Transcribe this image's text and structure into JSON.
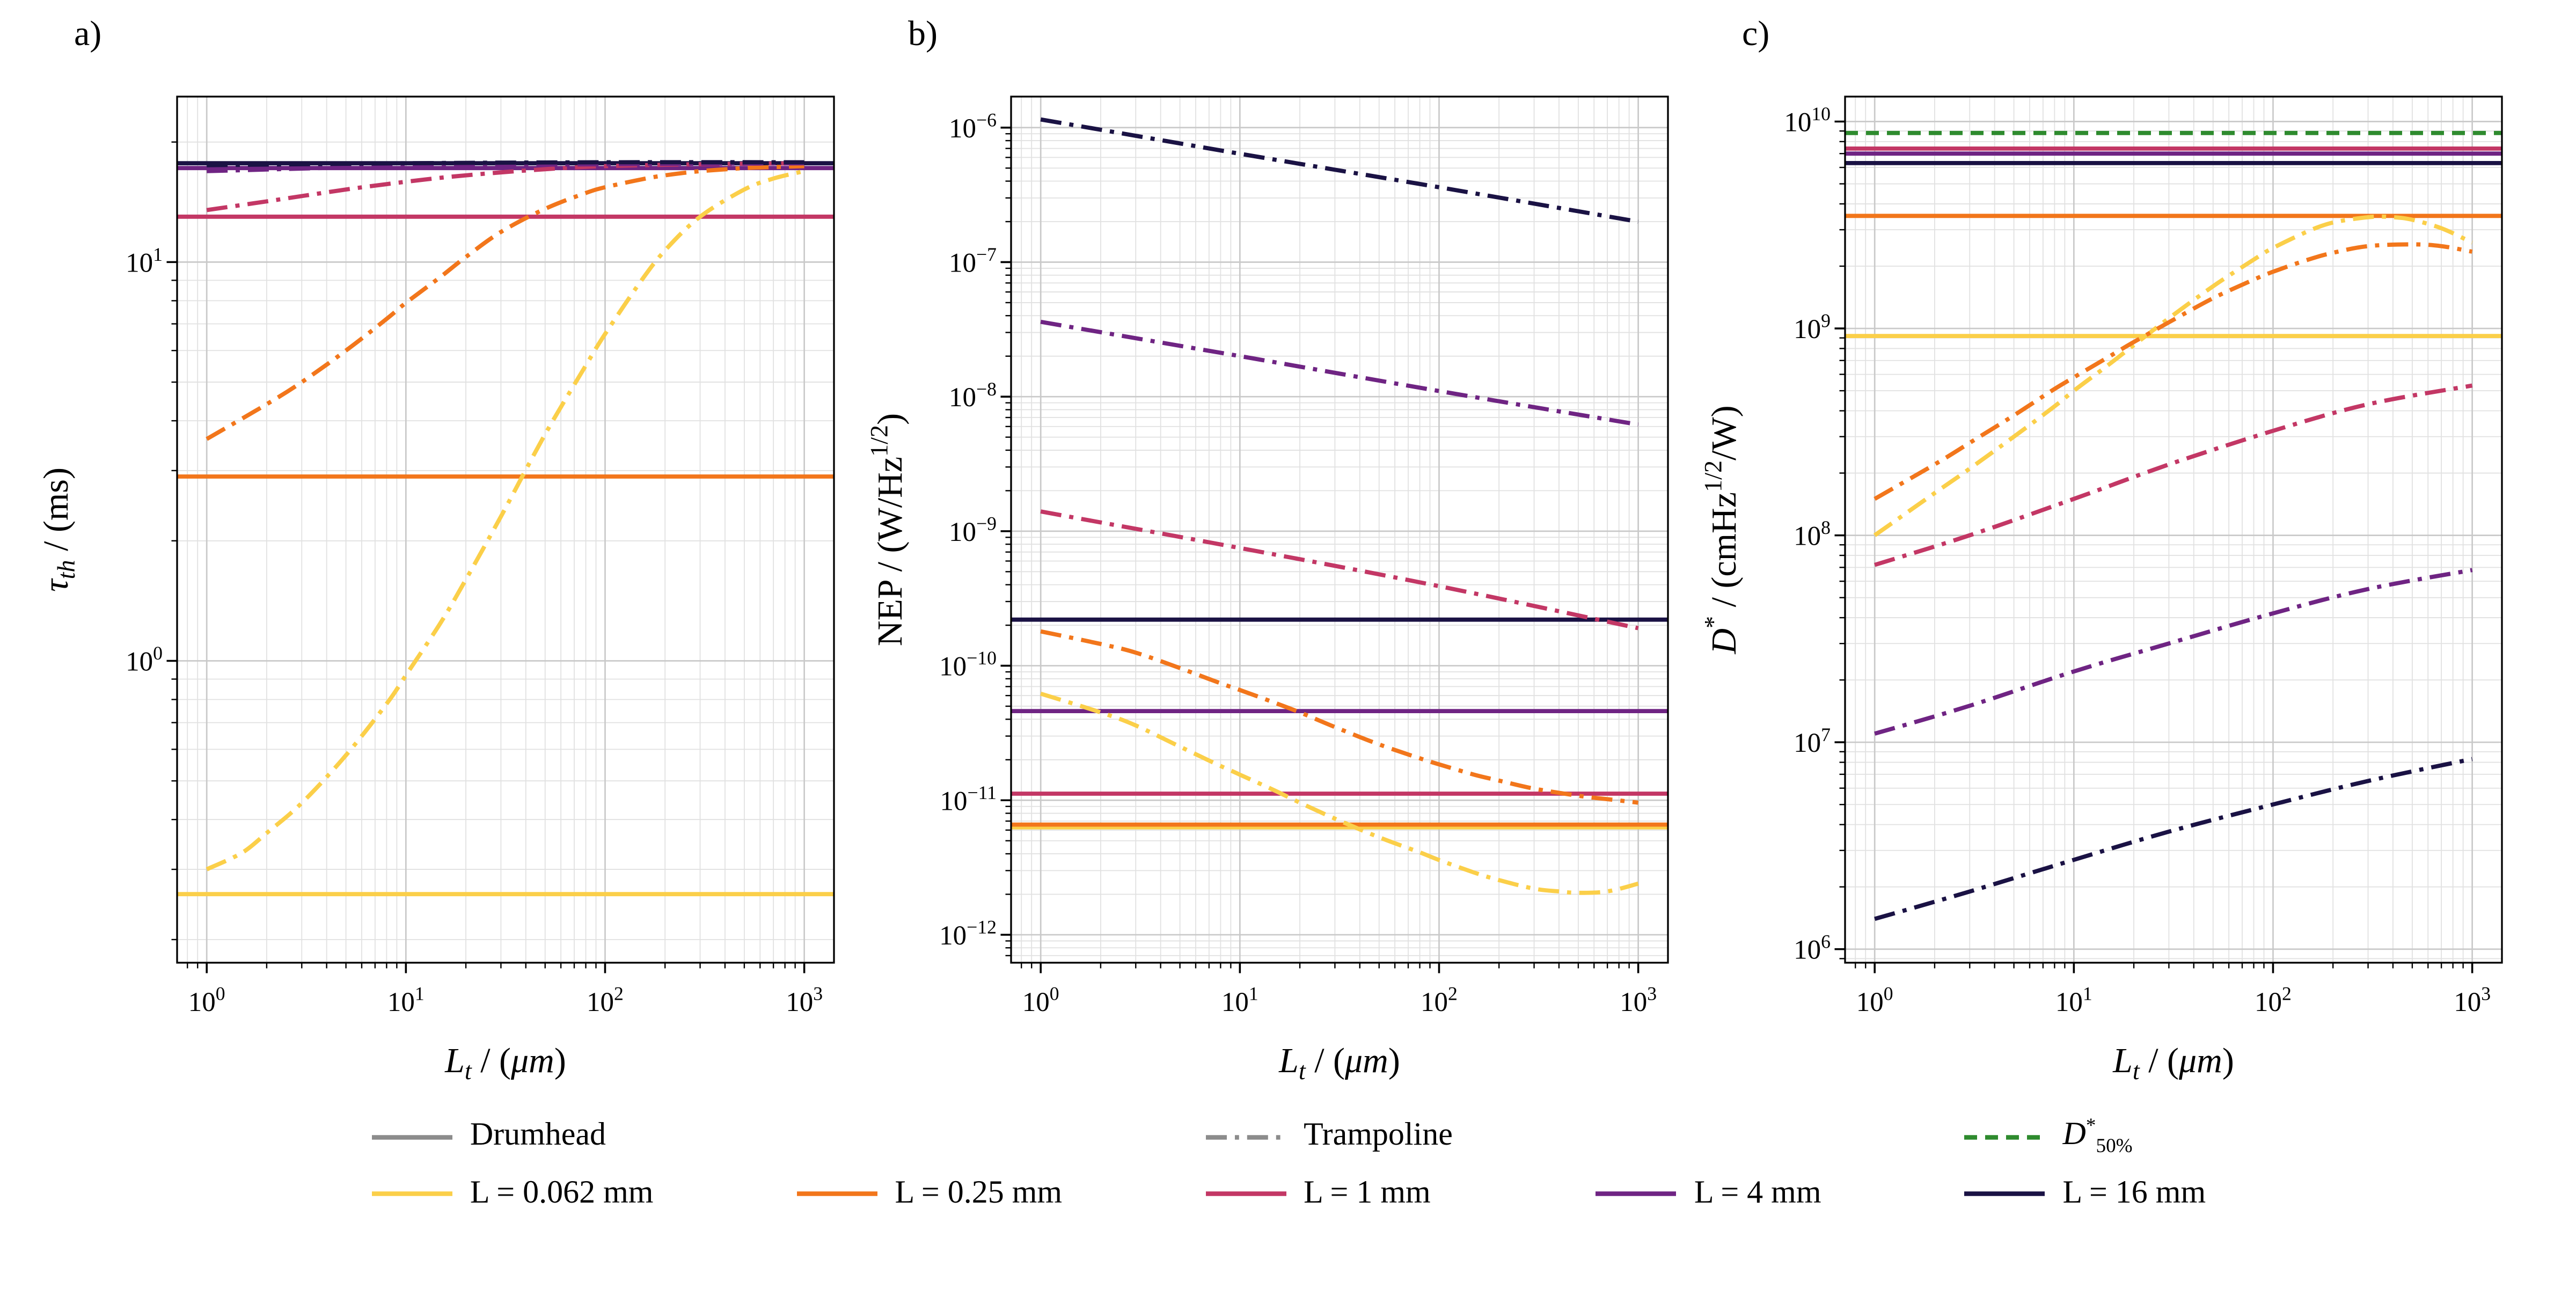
{
  "figure": {
    "background": "#ffffff",
    "colors": {
      "yellow": "#FBCF49",
      "orange": "#F2761B",
      "crimson": "#C33765",
      "purple": "#6F2483",
      "navy": "#1A1244",
      "green": "#2E8B2E",
      "gray": "#8C8C8C"
    },
    "grid_major_color": "#c9c9c9",
    "grid_minor_color": "#e1e1e1"
  },
  "chart_data": [
    {
      "type": "line",
      "panel": "a)",
      "xlim": [
        0.71,
        1410
      ],
      "ylim": [
        0.175,
        26
      ],
      "x_tick_exponents": [
        0,
        1,
        2,
        3
      ],
      "y_tick_exponents": [
        0,
        1
      ],
      "grid": true,
      "xlabel_segments": [
        {
          "t": "L",
          "i": 1
        },
        {
          "t": "t",
          "sub": 1,
          "i": 1
        },
        {
          "t": " / ("
        },
        {
          "t": "μm",
          "i": 1
        },
        {
          "t": ")"
        }
      ],
      "ylabel_segments": [
        {
          "t": "τ",
          "i": 1
        },
        {
          "t": "th",
          "sub": 1,
          "i": 1
        },
        {
          "t": " / (ms)"
        }
      ],
      "series": [
        {
          "name": "Drumhead L = 0.062 mm",
          "color": "yellow",
          "style": "solid",
          "kind": "hline",
          "y": 0.26
        },
        {
          "name": "Drumhead L = 0.25 mm",
          "color": "orange",
          "style": "solid",
          "kind": "hline",
          "y": 2.9
        },
        {
          "name": "Drumhead L = 1 mm",
          "color": "crimson",
          "style": "solid",
          "kind": "hline",
          "y": 13.0
        },
        {
          "name": "Drumhead L = 4 mm",
          "color": "purple",
          "style": "solid",
          "kind": "hline",
          "y": 17.2
        },
        {
          "name": "Drumhead L = 16 mm",
          "color": "navy",
          "style": "solid",
          "kind": "hline",
          "y": 17.7
        },
        {
          "name": "Trampoline L = 0.062 mm",
          "color": "yellow",
          "style": "dashdot",
          "kind": "curve",
          "x": [
            1,
            1.5,
            2,
            3,
            5,
            8,
            10,
            15,
            20,
            30,
            50,
            80,
            100,
            150,
            200,
            300,
            500,
            700,
            1000
          ],
          "y": [
            0.3,
            0.33,
            0.37,
            0.44,
            0.58,
            0.78,
            0.92,
            1.25,
            1.6,
            2.3,
            3.7,
            5.5,
            6.6,
            8.9,
            10.7,
            13.0,
            15.2,
            16.2,
            16.9
          ]
        },
        {
          "name": "Trampoline L = 0.25 mm",
          "color": "orange",
          "style": "dashdot",
          "kind": "curve",
          "x": [
            1,
            2,
            3,
            5,
            8,
            10,
            15,
            20,
            30,
            50,
            80,
            100,
            150,
            200,
            300,
            500,
            700,
            1000
          ],
          "y": [
            3.6,
            4.4,
            5.0,
            6.0,
            7.2,
            7.9,
            9.2,
            10.3,
            11.9,
            13.6,
            14.9,
            15.4,
            16.1,
            16.5,
            16.9,
            17.2,
            17.3,
            17.4
          ]
        },
        {
          "name": "Trampoline L = 1 mm",
          "color": "crimson",
          "style": "dashdot",
          "kind": "curve",
          "x": [
            1,
            2,
            5,
            10,
            20,
            50,
            100,
            300,
            1000
          ],
          "y": [
            13.5,
            14.2,
            15.2,
            15.9,
            16.5,
            17.1,
            17.4,
            17.6,
            17.7
          ]
        },
        {
          "name": "Trampoline L = 4 mm",
          "color": "purple",
          "style": "dashdot",
          "kind": "curve",
          "x": [
            1,
            10,
            100,
            1000
          ],
          "y": [
            16.9,
            17.4,
            17.6,
            17.7
          ]
        },
        {
          "name": "Trampoline L = 16 mm",
          "color": "navy",
          "style": "dashdot",
          "kind": "curve",
          "x": [
            1,
            10,
            100,
            1000
          ],
          "y": [
            17.5,
            17.7,
            17.8,
            17.8
          ]
        }
      ]
    },
    {
      "type": "line",
      "panel": "b)",
      "xlim": [
        0.71,
        1410
      ],
      "ylim": [
        6.2e-13,
        1.7e-06
      ],
      "x_tick_exponents": [
        0,
        1,
        2,
        3
      ],
      "y_tick_exponents": [
        -6,
        -7,
        -8,
        -9,
        -10,
        -11,
        -12
      ],
      "grid": true,
      "xlabel_segments": [
        {
          "t": "L",
          "i": 1
        },
        {
          "t": "t",
          "sub": 1,
          "i": 1
        },
        {
          "t": " / ("
        },
        {
          "t": "μm",
          "i": 1
        },
        {
          "t": ")"
        }
      ],
      "ylabel_segments": [
        {
          "t": "NEP / (W/Hz"
        },
        {
          "t": "1/2",
          "sup": 1
        },
        {
          "t": ")"
        }
      ],
      "series": [
        {
          "name": "Drumhead L = 0.062 mm",
          "color": "yellow",
          "style": "solid",
          "kind": "hline",
          "y": 6.3e-12
        },
        {
          "name": "Drumhead L = 0.25 mm",
          "color": "orange",
          "style": "solid",
          "kind": "hline",
          "y": 6.6e-12
        },
        {
          "name": "Drumhead L = 1 mm",
          "color": "crimson",
          "style": "solid",
          "kind": "hline",
          "y": 1.12e-11
        },
        {
          "name": "Drumhead L = 4 mm",
          "color": "purple",
          "style": "solid",
          "kind": "hline",
          "y": 4.6e-11
        },
        {
          "name": "Drumhead L = 16 mm",
          "color": "navy",
          "style": "solid",
          "kind": "hline",
          "y": 2.2e-10
        },
        {
          "name": "Trampoline L = 16 mm",
          "color": "navy",
          "style": "dashdot",
          "kind": "curve",
          "x": [
            1,
            10,
            100,
            1000
          ],
          "y": [
            1.15e-06,
            6.4e-07,
            3.6e-07,
            2e-07
          ]
        },
        {
          "name": "Trampoline L = 4 mm",
          "color": "purple",
          "style": "dashdot",
          "kind": "curve",
          "x": [
            1,
            10,
            100,
            1000
          ],
          "y": [
            3.6e-08,
            2e-08,
            1.1e-08,
            6.2e-09
          ]
        },
        {
          "name": "Trampoline L = 1 mm",
          "color": "crimson",
          "style": "dashdot",
          "kind": "curve",
          "x": [
            1,
            10,
            100,
            1000
          ],
          "y": [
            1.4e-09,
            7.5e-10,
            3.9e-10,
            1.9e-10
          ]
        },
        {
          "name": "Trampoline L = 0.25 mm",
          "color": "orange",
          "style": "dashdot",
          "kind": "curve",
          "x": [
            1,
            2,
            3,
            5,
            8,
            10,
            15,
            20,
            30,
            50,
            80,
            100,
            150,
            200,
            300,
            500,
            700,
            1000
          ],
          "y": [
            1.8e-10,
            1.45e-10,
            1.25e-10,
            9.6e-11,
            7.4e-11,
            6.6e-11,
            5.3e-11,
            4.5e-11,
            3.5e-11,
            2.6e-11,
            2.05e-11,
            1.85e-11,
            1.55e-11,
            1.4e-11,
            1.22e-11,
            1.08e-11,
            1.02e-11,
            9.6e-12
          ]
        },
        {
          "name": "Trampoline L = 0.062 mm",
          "color": "yellow",
          "style": "dashdot",
          "kind": "curve",
          "x": [
            1,
            2,
            3,
            5,
            8,
            10,
            15,
            20,
            30,
            50,
            80,
            100,
            150,
            200,
            300,
            400,
            500,
            700,
            1000
          ],
          "y": [
            6.2e-11,
            4.5e-11,
            3.6e-11,
            2.5e-11,
            1.8e-11,
            1.55e-11,
            1.18e-11,
            9.6e-12,
            7.3e-12,
            5.3e-12,
            4.1e-12,
            3.6e-12,
            2.9e-12,
            2.55e-12,
            2.2e-12,
            2.1e-12,
            2.05e-12,
            2.1e-12,
            2.4e-12
          ]
        }
      ]
    },
    {
      "type": "line",
      "panel": "c)",
      "xlim": [
        0.71,
        1410
      ],
      "ylim": [
        860000.0,
        13200000000.0
      ],
      "x_tick_exponents": [
        0,
        1,
        2,
        3
      ],
      "y_tick_exponents": [
        6,
        7,
        8,
        9,
        10
      ],
      "grid": true,
      "xlabel_segments": [
        {
          "t": "L",
          "i": 1
        },
        {
          "t": "t",
          "sub": 1,
          "i": 1
        },
        {
          "t": " / ("
        },
        {
          "t": "μm",
          "i": 1
        },
        {
          "t": ")"
        }
      ],
      "ylabel_segments": [
        {
          "t": "D",
          "i": 1
        },
        {
          "t": "*",
          "sup": 1
        },
        {
          "t": " / (cmHz"
        },
        {
          "t": "1/2",
          "sup": 1
        },
        {
          "t": "/W)"
        }
      ],
      "series": [
        {
          "name": "Drumhead L = 0.062 mm",
          "color": "yellow",
          "style": "solid",
          "kind": "hline",
          "y": 920000000.0
        },
        {
          "name": "Drumhead L = 0.25 mm",
          "color": "orange",
          "style": "solid",
          "kind": "hline",
          "y": 3500000000.0
        },
        {
          "name": "Drumhead L = 1 mm",
          "color": "crimson",
          "style": "solid",
          "kind": "hline",
          "y": 7400000000.0
        },
        {
          "name": "Drumhead L = 4 mm",
          "color": "purple",
          "style": "solid",
          "kind": "hline",
          "y": 7000000000.0
        },
        {
          "name": "Drumhead L = 16 mm",
          "color": "navy",
          "style": "solid",
          "kind": "hline",
          "y": 6300000000.0
        },
        {
          "name": "Trampoline L = 0.062 mm",
          "color": "yellow",
          "style": "dashdot",
          "kind": "curve",
          "x": [
            1,
            2,
            3,
            5,
            8,
            10,
            15,
            20,
            30,
            50,
            80,
            100,
            150,
            200,
            300,
            400,
            500,
            700,
            1000
          ],
          "y": [
            100000000.0,
            160000000.0,
            210000000.0,
            300000000.0,
            420000000.0,
            500000000.0,
            670000000.0,
            830000000.0,
            1120000000.0,
            1600000000.0,
            2150000000.0,
            2450000000.0,
            2950000000.0,
            3250000000.0,
            3450000000.0,
            3450000000.0,
            3350000000.0,
            3050000000.0,
            2600000000.0
          ]
        },
        {
          "name": "Trampoline L = 0.25 mm",
          "color": "orange",
          "style": "dashdot",
          "kind": "curve",
          "x": [
            1,
            2,
            3,
            5,
            8,
            10,
            15,
            20,
            30,
            50,
            80,
            100,
            150,
            200,
            300,
            500,
            700,
            1000
          ],
          "y": [
            150000000.0,
            220000000.0,
            280000000.0,
            380000000.0,
            510000000.0,
            580000000.0,
            730000000.0,
            860000000.0,
            1070000000.0,
            1400000000.0,
            1720000000.0,
            1880000000.0,
            2150000000.0,
            2320000000.0,
            2500000000.0,
            2550000000.0,
            2500000000.0,
            2350000000.0
          ]
        },
        {
          "name": "Trampoline L = 1 mm",
          "color": "crimson",
          "style": "dashdot",
          "kind": "curve",
          "x": [
            1,
            3,
            10,
            30,
            100,
            300,
            1000
          ],
          "y": [
            72000000.0,
            100000000.0,
            150000000.0,
            220000000.0,
            320000000.0,
            430000000.0,
            530000000.0
          ]
        },
        {
          "name": "Trampoline L = 4 mm",
          "color": "purple",
          "style": "dashdot",
          "kind": "curve",
          "x": [
            1,
            3,
            10,
            30,
            100,
            300,
            1000
          ],
          "y": [
            11000000.0,
            15000000.0,
            22000000.0,
            30000000.0,
            42000000.0,
            55000000.0,
            68000000.0
          ]
        },
        {
          "name": "Trampoline L = 16 mm",
          "color": "navy",
          "style": "dashdot",
          "kind": "curve",
          "x": [
            1,
            3,
            10,
            30,
            100,
            300,
            1000
          ],
          "y": [
            1400000.0,
            1900000.0,
            2700000.0,
            3700000.0,
            5000000.0,
            6500000.0,
            8300000.0
          ]
        },
        {
          "name": "D 50 percent limit",
          "color": "green",
          "style": "dashed",
          "kind": "hline",
          "y": 8800000000.0
        }
      ]
    }
  ],
  "legend": {
    "rows": [
      {
        "cols": [
          1,
          3,
          5
        ],
        "items": [
          {
            "color": "gray",
            "style": "solid",
            "label_segments": [
              {
                "t": "Drumhead"
              }
            ]
          },
          {
            "color": "gray",
            "style": "dashdot",
            "label_segments": [
              {
                "t": "Trampoline"
              }
            ]
          },
          {
            "color": "green",
            "style": "dashed",
            "label_segments": [
              {
                "t": "D",
                "i": 1
              },
              {
                "t": "*",
                "sup": 1
              },
              {
                "t": "50%",
                "sub": 1
              }
            ]
          }
        ]
      },
      {
        "cols": [
          1,
          2,
          3,
          4,
          5
        ],
        "items": [
          {
            "color": "yellow",
            "style": "solid",
            "label_segments": [
              {
                "t": "L = 0.062 mm"
              }
            ]
          },
          {
            "color": "orange",
            "style": "solid",
            "label_segments": [
              {
                "t": "L = 0.25 mm"
              }
            ]
          },
          {
            "color": "crimson",
            "style": "solid",
            "label_segments": [
              {
                "t": "L = 1 mm"
              }
            ]
          },
          {
            "color": "purple",
            "style": "solid",
            "label_segments": [
              {
                "t": "L = 4 mm"
              }
            ]
          },
          {
            "color": "navy",
            "style": "solid",
            "label_segments": [
              {
                "t": "L = 16 mm"
              }
            ]
          }
        ]
      }
    ]
  }
}
